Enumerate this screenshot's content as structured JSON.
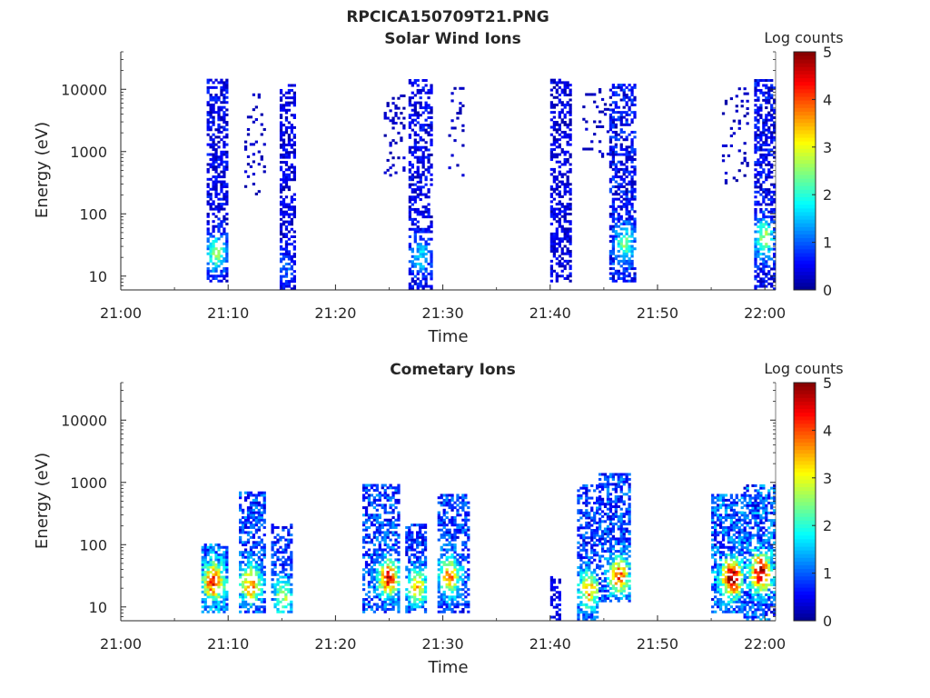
{
  "figure": {
    "title": "RPCICA150709T21.PNG"
  },
  "colormap": {
    "name": "jet",
    "stops": [
      "#00008f",
      "#0000ff",
      "#00ffff",
      "#ffff00",
      "#ff0000",
      "#800000"
    ]
  },
  "chart_data": [
    {
      "type": "heatmap",
      "title": "Solar Wind Ions",
      "xlabel": "Time",
      "ylabel": "Energy (eV)",
      "y_scale": "log",
      "x_unit": "minutes after 21:00",
      "xlim": [
        0,
        61
      ],
      "ylim": [
        6,
        40000
      ],
      "x_ticks": [
        {
          "value": 0,
          "label": "21:00"
        },
        {
          "value": 10,
          "label": "21:10"
        },
        {
          "value": 20,
          "label": "21:20"
        },
        {
          "value": 30,
          "label": "21:30"
        },
        {
          "value": 40,
          "label": "21:40"
        },
        {
          "value": 50,
          "label": "21:50"
        },
        {
          "value": 60,
          "label": "22:00"
        }
      ],
      "y_ticks": [
        {
          "value": 10,
          "label": "10"
        },
        {
          "value": 100,
          "label": "100"
        },
        {
          "value": 1000,
          "label": "1000"
        },
        {
          "value": 10000,
          "label": "10000"
        }
      ],
      "colorbar": {
        "label": "Log counts",
        "min": 0,
        "max": 5,
        "ticks": [
          "0",
          "1",
          "2",
          "3",
          "4",
          "5"
        ]
      },
      "blobs": [
        {
          "x": [
            8.0,
            9.8
          ],
          "e": [
            8,
            14000
          ],
          "v": [
            0.1,
            0.8
          ],
          "density": 0.55,
          "peak": [
            8.8,
            22
          ],
          "peak_v": 2.0
        },
        {
          "x": [
            14.8,
            16.2
          ],
          "e": [
            6,
            12000
          ],
          "v": [
            0.1,
            0.7
          ],
          "density": 0.5,
          "peak": [
            15.2,
            12
          ],
          "peak_v": 0.6
        },
        {
          "x": [
            11.5,
            13.5
          ],
          "e": [
            200,
            8000
          ],
          "v": [
            0.1,
            0.4
          ],
          "density": 0.12
        },
        {
          "x": [
            24.5,
            26.5
          ],
          "e": [
            400,
            8000
          ],
          "v": [
            0.1,
            0.4
          ],
          "density": 0.2
        },
        {
          "x": [
            26.8,
            29.0
          ],
          "e": [
            6,
            14000
          ],
          "v": [
            0.1,
            0.8
          ],
          "density": 0.5,
          "peak": [
            27.8,
            20
          ],
          "peak_v": 1.2
        },
        {
          "x": [
            30.5,
            32.0
          ],
          "e": [
            400,
            10000
          ],
          "v": [
            0.1,
            0.4
          ],
          "density": 0.12
        },
        {
          "x": [
            40.0,
            42.0
          ],
          "e": [
            8,
            14000
          ],
          "v": [
            0.1,
            0.7
          ],
          "density": 0.5
        },
        {
          "x": [
            43.0,
            45.5
          ],
          "e": [
            800,
            10000
          ],
          "v": [
            0.1,
            0.4
          ],
          "density": 0.15
        },
        {
          "x": [
            45.5,
            48.0
          ],
          "e": [
            8,
            12000
          ],
          "v": [
            0.1,
            1.0
          ],
          "density": 0.55,
          "peak": [
            46.8,
            30
          ],
          "peak_v": 1.8
        },
        {
          "x": [
            56.0,
            58.5
          ],
          "e": [
            300,
            12000
          ],
          "v": [
            0.1,
            0.4
          ],
          "density": 0.12
        },
        {
          "x": [
            59.0,
            61.0
          ],
          "e": [
            6,
            14000
          ],
          "v": [
            0.1,
            0.9
          ],
          "density": 0.55,
          "peak": [
            59.8,
            40
          ],
          "peak_v": 2.2
        }
      ]
    },
    {
      "type": "heatmap",
      "title": "Cometary Ions",
      "xlabel": "Time",
      "ylabel": "Energy (eV)",
      "y_scale": "log",
      "x_unit": "minutes after 21:00",
      "xlim": [
        0,
        61
      ],
      "ylim": [
        6,
        40000
      ],
      "x_ticks": [
        {
          "value": 0,
          "label": "21:00"
        },
        {
          "value": 10,
          "label": "21:10"
        },
        {
          "value": 20,
          "label": "21:20"
        },
        {
          "value": 30,
          "label": "21:30"
        },
        {
          "value": 40,
          "label": "21:40"
        },
        {
          "value": 50,
          "label": "21:50"
        },
        {
          "value": 60,
          "label": "22:00"
        }
      ],
      "y_ticks": [
        {
          "value": 10,
          "label": "10"
        },
        {
          "value": 100,
          "label": "100"
        },
        {
          "value": 1000,
          "label": "1000"
        },
        {
          "value": 10000,
          "label": "10000"
        }
      ],
      "colorbar": {
        "label": "Log counts",
        "min": 0,
        "max": 5,
        "ticks": [
          "0",
          "1",
          "2",
          "3",
          "4",
          "5"
        ]
      },
      "blobs": [
        {
          "x": [
            7.5,
            10.0
          ],
          "e": [
            8,
            100
          ],
          "v": [
            0.3,
            1.6
          ],
          "density": 0.7,
          "peak": [
            8.5,
            25
          ],
          "peak_v": 3.4
        },
        {
          "x": [
            11.0,
            13.5
          ],
          "e": [
            8,
            700
          ],
          "v": [
            0.3,
            1.4
          ],
          "density": 0.6,
          "peak": [
            12.0,
            22
          ],
          "peak_v": 3.0
        },
        {
          "x": [
            14.0,
            16.0
          ],
          "e": [
            8,
            200
          ],
          "v": [
            0.3,
            1.2
          ],
          "density": 0.55,
          "peak": [
            15.0,
            14
          ],
          "peak_v": 2.0
        },
        {
          "x": [
            22.5,
            26.0
          ],
          "e": [
            8,
            900
          ],
          "v": [
            0.3,
            1.4
          ],
          "density": 0.6,
          "peak": [
            24.8,
            28
          ],
          "peak_v": 3.5
        },
        {
          "x": [
            26.5,
            28.5
          ],
          "e": [
            8,
            200
          ],
          "v": [
            0.3,
            1.2
          ],
          "density": 0.6,
          "peak": [
            27.5,
            20
          ],
          "peak_v": 2.6
        },
        {
          "x": [
            29.5,
            32.5
          ],
          "e": [
            8,
            600
          ],
          "v": [
            0.3,
            1.3
          ],
          "density": 0.6,
          "peak": [
            30.5,
            30
          ],
          "peak_v": 3.0
        },
        {
          "x": [
            40.0,
            40.8
          ],
          "e": [
            6,
            30
          ],
          "v": [
            0.2,
            0.8
          ],
          "density": 0.4
        },
        {
          "x": [
            42.5,
            44.5
          ],
          "e": [
            6,
            900
          ],
          "v": [
            0.3,
            1.3
          ],
          "density": 0.55,
          "peak": [
            43.5,
            18
          ],
          "peak_v": 2.8
        },
        {
          "x": [
            44.5,
            47.5
          ],
          "e": [
            12,
            1300
          ],
          "v": [
            0.3,
            1.4
          ],
          "density": 0.6,
          "peak": [
            46.3,
            30
          ],
          "peak_v": 3.2
        },
        {
          "x": [
            55.0,
            58.0
          ],
          "e": [
            8,
            600
          ],
          "v": [
            0.3,
            1.6
          ],
          "density": 0.65,
          "peak": [
            56.8,
            28
          ],
          "peak_v": 4.2
        },
        {
          "x": [
            58.0,
            61.0
          ],
          "e": [
            6,
            900
          ],
          "v": [
            0.3,
            1.6
          ],
          "density": 0.65,
          "peak": [
            59.5,
            35
          ],
          "peak_v": 4.0
        }
      ]
    }
  ]
}
